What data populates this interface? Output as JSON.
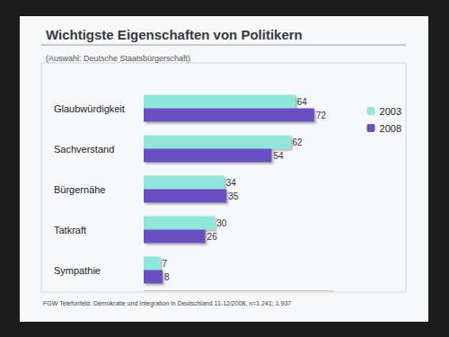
{
  "chart_data": {
    "type": "bar",
    "title": "Wichtigste Eigenschaften von Politikern",
    "subtitle": "(Auswahl: Deutsche Staatsbürgerschaft)",
    "annotation": "FGW Telefonfeld: Demokratie und Integration in Deutschland 11-12/2008, n=1.241; 1.937",
    "orientation": "horizontal",
    "categories": [
      "Glaubwürdigkeit",
      "Sachverstand",
      "Bürgernähe",
      "Tatkraft",
      "Sympathie"
    ],
    "series": [
      {
        "name": "2003",
        "color": "#8fe6da",
        "values": [
          64,
          62,
          34,
          30,
          7
        ]
      },
      {
        "name": "2008",
        "color": "#6a4fc3",
        "values": [
          72,
          54,
          35,
          26,
          8
        ]
      }
    ],
    "xlim": [
      0,
      80
    ],
    "data_labels": true,
    "tick_labels": "y",
    "grid": false,
    "legend": "top-right"
  }
}
